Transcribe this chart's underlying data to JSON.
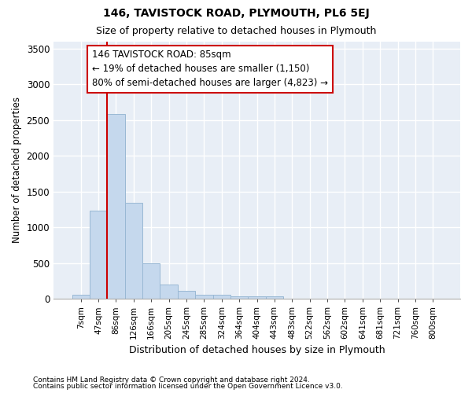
{
  "title1": "146, TAVISTOCK ROAD, PLYMOUTH, PL6 5EJ",
  "title2": "Size of property relative to detached houses in Plymouth",
  "xlabel": "Distribution of detached houses by size in Plymouth",
  "ylabel": "Number of detached properties",
  "footer1": "Contains HM Land Registry data © Crown copyright and database right 2024.",
  "footer2": "Contains public sector information licensed under the Open Government Licence v3.0.",
  "categories": [
    "7sqm",
    "47sqm",
    "86sqm",
    "126sqm",
    "166sqm",
    "205sqm",
    "245sqm",
    "285sqm",
    "324sqm",
    "364sqm",
    "404sqm",
    "443sqm",
    "483sqm",
    "522sqm",
    "562sqm",
    "602sqm",
    "641sqm",
    "681sqm",
    "721sqm",
    "760sqm",
    "800sqm"
  ],
  "values": [
    50,
    1230,
    2580,
    1340,
    500,
    200,
    105,
    50,
    50,
    35,
    35,
    35,
    0,
    0,
    0,
    0,
    0,
    0,
    0,
    0,
    0
  ],
  "bar_color": "#c5d8ed",
  "bar_edge_color": "#99b8d4",
  "background_color": "#e8eef6",
  "grid_color": "#ffffff",
  "property_line_color": "#cc0000",
  "property_line_bar_index": 2,
  "annotation_text": "146 TAVISTOCK ROAD: 85sqm\n← 19% of detached houses are smaller (1,150)\n80% of semi-detached houses are larger (4,823) →",
  "annotation_box_color": "#cc0000",
  "ylim": [
    0,
    3600
  ],
  "yticks": [
    0,
    500,
    1000,
    1500,
    2000,
    2500,
    3000,
    3500
  ],
  "fig_bg": "#ffffff"
}
